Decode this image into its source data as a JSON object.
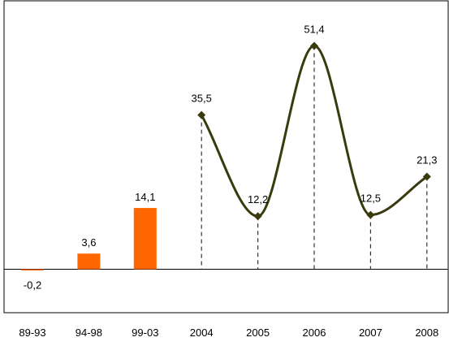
{
  "chart_data": {
    "type": "bar",
    "categories": [
      "89-93",
      "94-98",
      "99-03",
      "2004",
      "2005",
      "2006",
      "2007",
      "2008"
    ],
    "bar_series": {
      "categories": [
        "89-93",
        "94-98",
        "99-03"
      ],
      "values": [
        -0.2,
        3.6,
        14.1
      ],
      "labels": [
        "-0,2",
        "3,6",
        "14,1"
      ],
      "color": "#FF6600"
    },
    "line_series": {
      "categories": [
        "2004",
        "2005",
        "2006",
        "2007",
        "2008"
      ],
      "values": [
        35.5,
        12.2,
        51.4,
        12.5,
        21.3
      ],
      "labels": [
        "35,5",
        "12,2",
        "51,4",
        "12,5",
        "21,3"
      ],
      "color": "#3A3A0F",
      "smooth": true,
      "marker": "diamond",
      "drop_lines": "dashed"
    },
    "ylim": [
      -10,
      55
    ],
    "grid": false,
    "legend": "none"
  }
}
